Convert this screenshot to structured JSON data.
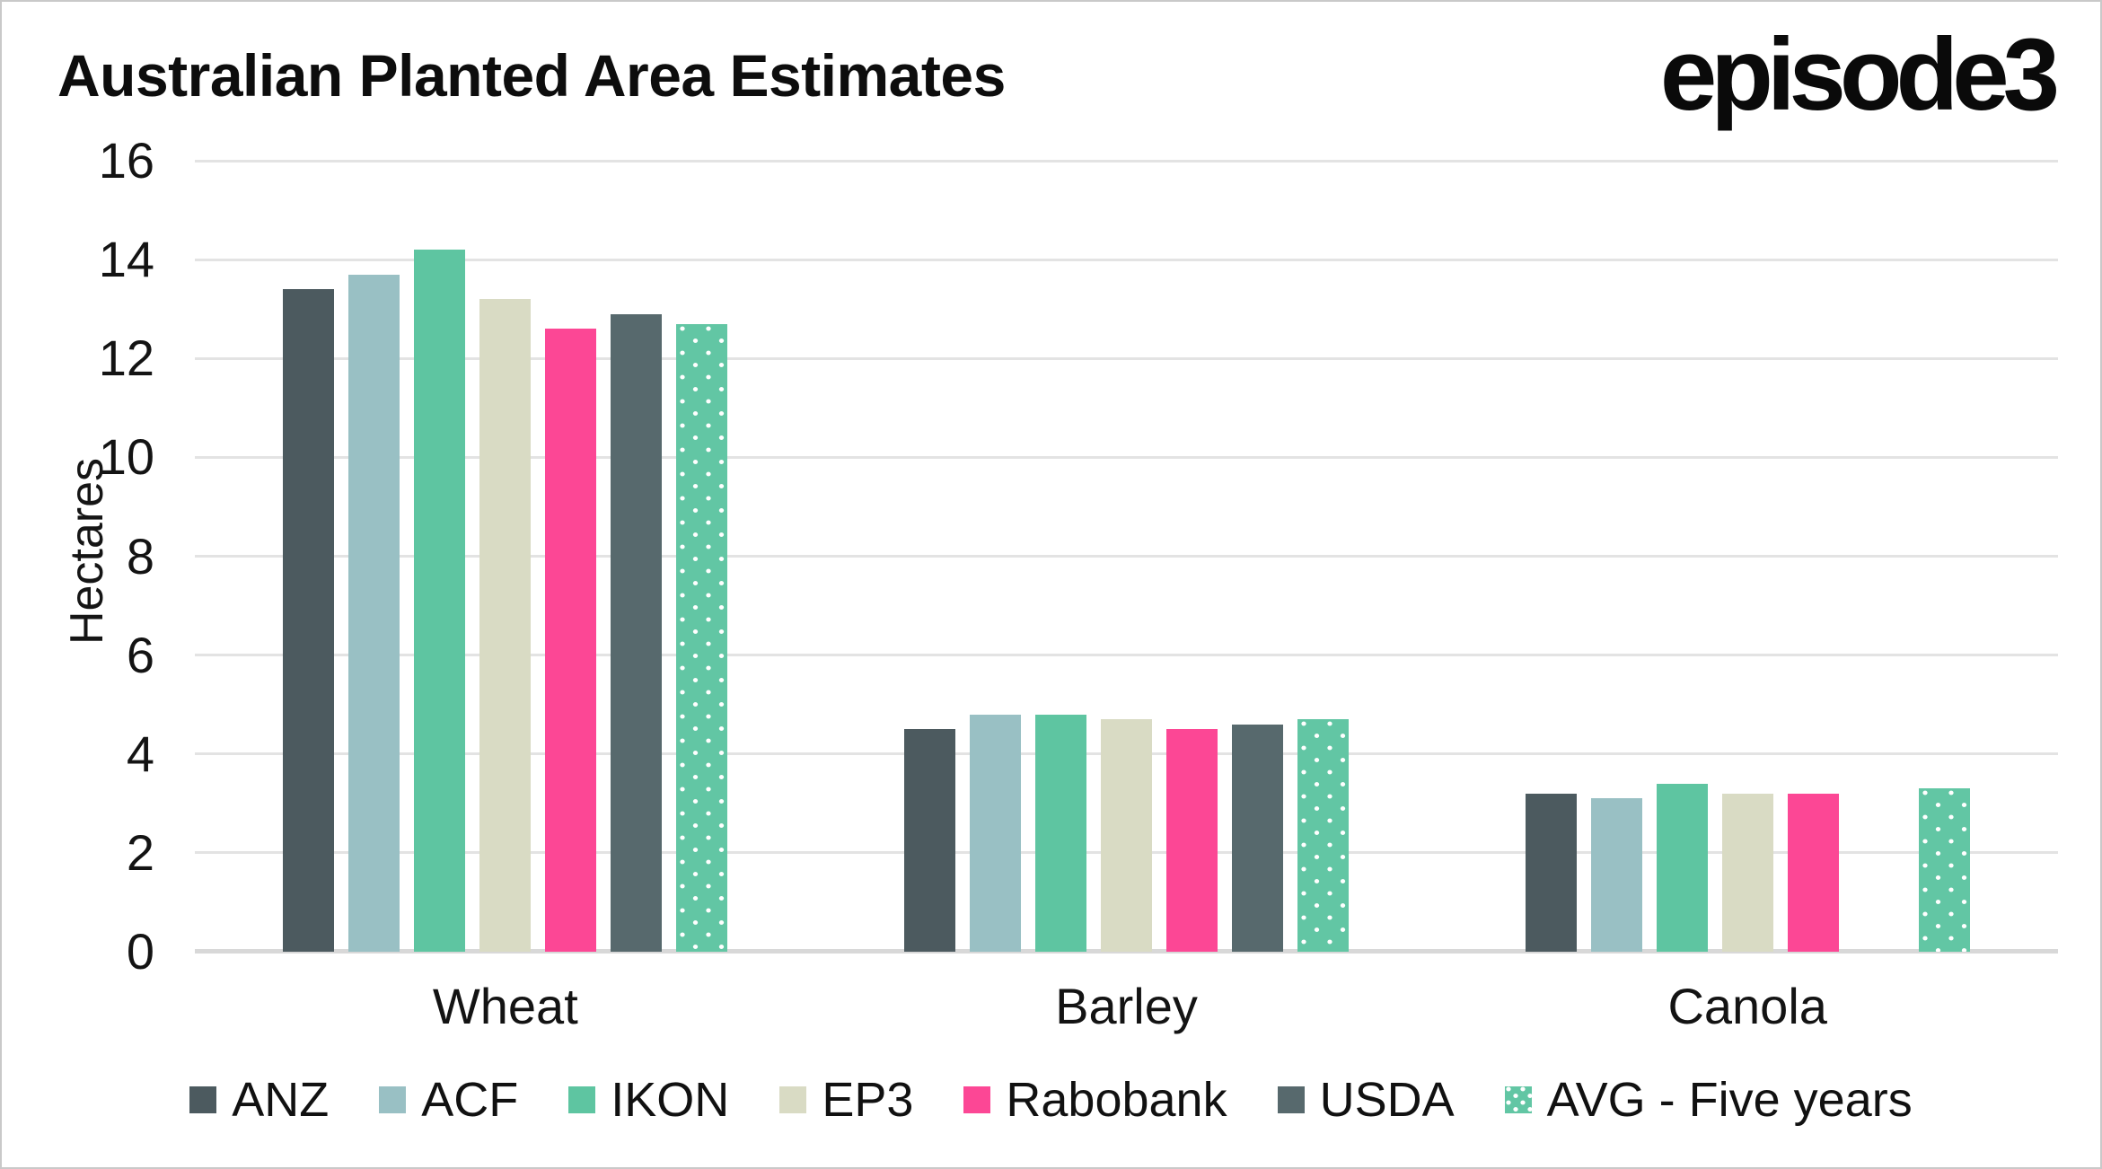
{
  "header": {
    "title": "Australian Planted Area Estimates",
    "logo": "episode3"
  },
  "chart_data": {
    "type": "bar",
    "title": "Australian Planted Area Estimates",
    "xlabel": "",
    "ylabel": "Hectares",
    "ylim": [
      0,
      16
    ],
    "y_ticks": [
      16,
      14,
      12,
      10,
      8,
      6,
      4,
      2,
      0
    ],
    "grid": "horizontal-on",
    "legend_position": "bottom",
    "categories": [
      "Wheat",
      "Barley",
      "Canola"
    ],
    "series": [
      {
        "name": "ANZ",
        "color": "#4C5A5F",
        "pattern": "solid",
        "values": [
          13.4,
          4.5,
          3.2
        ]
      },
      {
        "name": "ACF",
        "color": "#99C0C4",
        "pattern": "solid",
        "values": [
          13.7,
          4.8,
          3.1
        ]
      },
      {
        "name": "IKON",
        "color": "#5EC5A1",
        "pattern": "solid",
        "values": [
          14.2,
          4.8,
          3.4
        ]
      },
      {
        "name": "EP3",
        "color": "#D9DBC4",
        "pattern": "solid",
        "values": [
          13.2,
          4.7,
          3.2
        ]
      },
      {
        "name": "Rabobank",
        "color": "#FC4795",
        "pattern": "solid",
        "values": [
          12.6,
          4.5,
          3.2
        ]
      },
      {
        "name": "USDA",
        "color": "#57696D",
        "pattern": "solid",
        "values": [
          12.9,
          4.6,
          null
        ]
      },
      {
        "name": "AVG - Five years",
        "color": "#62C6A4",
        "pattern": "white-dots",
        "values": [
          12.7,
          4.7,
          3.3
        ]
      }
    ]
  },
  "colors": {
    "background": "#FFFFFF",
    "border": "#C9C9C9",
    "grid_line": "#E3E3E3",
    "axis_line": "#D8D8D8",
    "text": "#111111"
  }
}
